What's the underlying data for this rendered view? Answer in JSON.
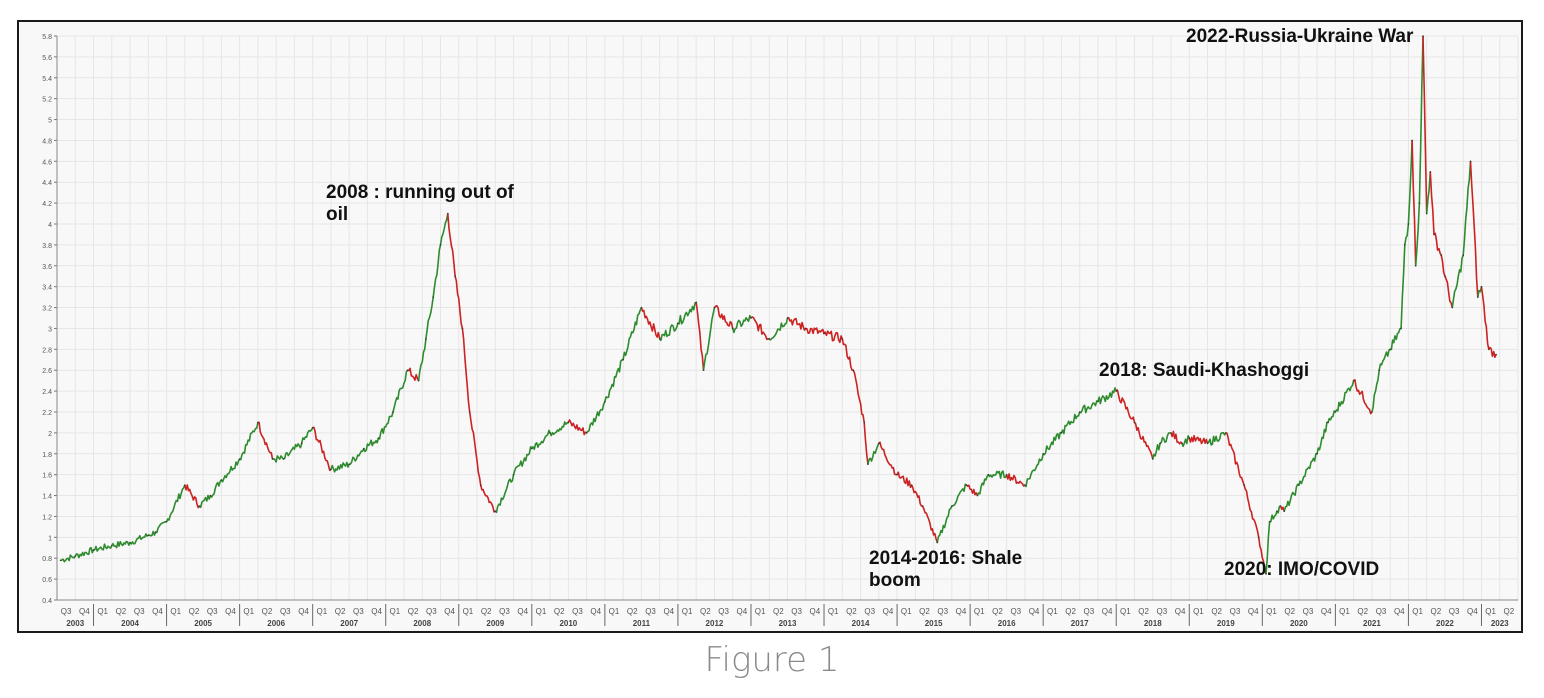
{
  "caption": "Figure 1",
  "chart_data": {
    "type": "line",
    "title": "",
    "xlabel": "",
    "ylabel": "",
    "ylim": [
      0.4,
      5.8
    ],
    "y_ticks": [
      "0.4",
      "0.6",
      "0.8",
      "1",
      "1.2",
      "1.4",
      "1.6",
      "1.8",
      "2",
      "2.2",
      "2.4",
      "2.6",
      "2.8",
      "3",
      "3.2",
      "3.4",
      "3.6",
      "3.8",
      "4",
      "4.2",
      "4.4",
      "4.6",
      "4.8",
      "5",
      "5.2",
      "5.4",
      "5.6",
      "5.8"
    ],
    "x_start": 2003.5,
    "x_end": 2023.5,
    "years": [
      "2003",
      "2004",
      "2005",
      "2006",
      "2007",
      "2008",
      "2009",
      "2010",
      "2011",
      "2012",
      "2013",
      "2014",
      "2015",
      "2016",
      "2017",
      "2018",
      "2019",
      "2020",
      "2021",
      "2022",
      "2023"
    ],
    "quarter_labels": [
      "Q1",
      "Q2",
      "Q3",
      "Q4"
    ],
    "grid": true,
    "colors": {
      "up": "#2e8b2e",
      "down": "#cc2222",
      "grid": "#e6e6e6"
    },
    "series": [
      {
        "x": [
          2003.55,
          2003.75,
          2004.0,
          2004.25,
          2004.5,
          2004.75,
          2004.85,
          2005.0,
          2005.25,
          2005.45,
          2005.6,
          2005.75,
          2006.0,
          2006.25,
          2006.45,
          2006.6,
          2006.85,
          2007.0,
          2007.25,
          2007.5,
          2007.7,
          2007.9,
          2008.1,
          2008.3,
          2008.45,
          2008.55,
          2008.65,
          2008.75,
          2008.85,
          2008.95,
          2009.05,
          2009.15,
          2009.3,
          2009.5,
          2009.75,
          2010.0,
          2010.25,
          2010.5,
          2010.75,
          2011.0,
          2011.25,
          2011.5,
          2011.75,
          2012.0,
          2012.25,
          2012.35,
          2012.5,
          2012.75,
          2013.0,
          2013.25,
          2013.5,
          2013.75,
          2014.0,
          2014.25,
          2014.4,
          2014.55,
          2014.6,
          2014.75,
          2015.0,
          2015.2,
          2015.35,
          2015.55,
          2015.75,
          2015.95,
          2016.1,
          2016.25,
          2016.5,
          2016.75,
          2017.0,
          2017.25,
          2017.5,
          2017.75,
          2018.0,
          2018.25,
          2018.5,
          2018.6,
          2018.75,
          2018.9,
          2019.0,
          2019.25,
          2019.5,
          2019.75,
          2019.95,
          2020.05,
          2020.1,
          2020.2,
          2020.25,
          2020.3,
          2020.5,
          2020.75,
          2020.9,
          2021.0,
          2021.25,
          2021.5,
          2021.6,
          2021.75,
          2021.9,
          2021.95,
          2022.0,
          2022.05,
          2022.1,
          2022.15,
          2022.2,
          2022.25,
          2022.3,
          2022.35,
          2022.45,
          2022.5,
          2022.6,
          2022.75,
          2022.85,
          2022.95,
          2023.0,
          2023.1,
          2023.2
        ],
        "y": [
          0.78,
          0.82,
          0.88,
          0.92,
          0.95,
          1.02,
          1.05,
          1.15,
          1.5,
          1.3,
          1.4,
          1.55,
          1.75,
          2.1,
          1.75,
          1.75,
          1.9,
          2.05,
          1.65,
          1.7,
          1.85,
          1.95,
          2.2,
          2.6,
          2.5,
          2.9,
          3.3,
          3.8,
          4.1,
          3.5,
          3.0,
          2.2,
          1.5,
          1.25,
          1.6,
          1.85,
          2.0,
          2.1,
          2.0,
          2.3,
          2.7,
          3.2,
          2.9,
          3.05,
          3.25,
          2.6,
          3.2,
          3.0,
          3.1,
          2.9,
          3.1,
          3.0,
          2.95,
          2.9,
          2.6,
          2.1,
          1.7,
          1.9,
          1.6,
          1.5,
          1.3,
          0.95,
          1.3,
          1.5,
          1.4,
          1.6,
          1.6,
          1.5,
          1.8,
          2.0,
          2.2,
          2.3,
          2.4,
          2.1,
          1.75,
          1.9,
          2.0,
          1.9,
          1.95,
          1.9,
          2.0,
          1.5,
          1.0,
          0.65,
          1.15,
          1.25,
          1.3,
          1.25,
          1.5,
          1.8,
          2.1,
          2.2,
          2.5,
          2.2,
          2.6,
          2.8,
          3.0,
          3.8,
          4.0,
          4.8,
          3.6,
          4.2,
          5.8,
          4.1,
          4.5,
          3.9,
          3.7,
          3.5,
          3.2,
          3.7,
          4.6,
          3.3,
          3.4,
          2.8,
          2.75
        ]
      }
    ],
    "annotations": [
      {
        "line1": "2008 : running out of",
        "line2": "oil"
      },
      {
        "line1": "2014-2016: Shale",
        "line2": "boom"
      },
      {
        "line1": "2018: Saudi-Khashoggi",
        "line2": ""
      },
      {
        "line1": "2020: IMO/COVID",
        "line2": ""
      },
      {
        "line1": "2022-Russia-Ukraine War",
        "line2": ""
      }
    ]
  }
}
